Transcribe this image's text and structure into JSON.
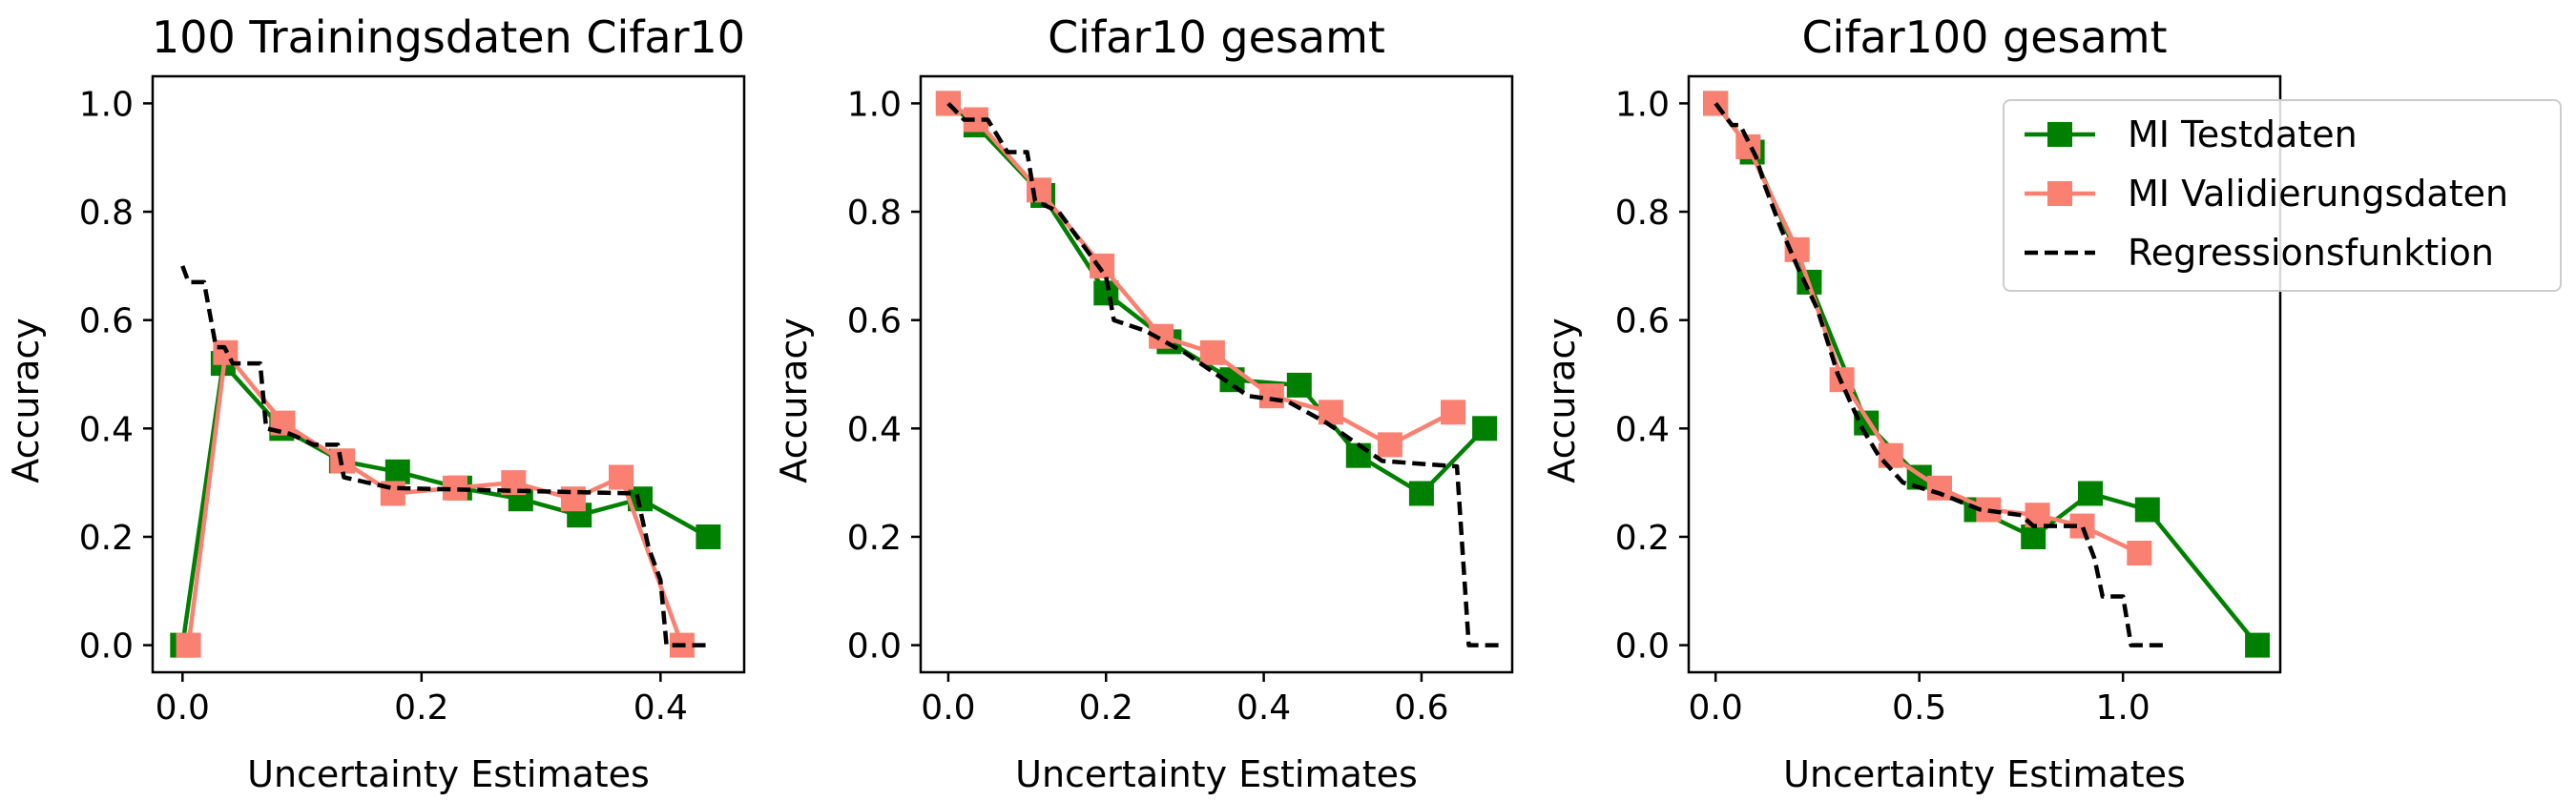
{
  "chart_data": [
    {
      "type": "line",
      "title": "100 Trainingsdaten Cifar10",
      "xlabel": "Uncertainty Estimates",
      "ylabel": "Accuracy",
      "xlim": [
        -0.025,
        0.47
      ],
      "ylim": [
        -0.05,
        1.05
      ],
      "xticks": [
        0.0,
        0.2,
        0.4
      ],
      "xtick_labels": [
        "0.0",
        "0.2",
        "0.4"
      ],
      "yticks": [
        0.0,
        0.2,
        0.4,
        0.6,
        0.8,
        1.0
      ],
      "ytick_labels": [
        "0.0",
        "0.2",
        "0.4",
        "0.6",
        "0.8",
        "1.0"
      ],
      "series": [
        {
          "name": "MI Testdaten",
          "color": "#008000",
          "marker": "square",
          "x": [
            0.0,
            0.034,
            0.083,
            0.133,
            0.18,
            0.232,
            0.283,
            0.332,
            0.383,
            0.44
          ],
          "y": [
            0.0,
            0.52,
            0.4,
            0.34,
            0.32,
            0.29,
            0.27,
            0.24,
            0.27,
            0.2
          ]
        },
        {
          "name": "MI Validierungsdaten",
          "color": "#fa8072",
          "marker": "square",
          "x": [
            0.005,
            0.036,
            0.084,
            0.134,
            0.176,
            0.228,
            0.277,
            0.327,
            0.367,
            0.418
          ],
          "y": [
            0.0,
            0.54,
            0.41,
            0.34,
            0.28,
            0.29,
            0.3,
            0.27,
            0.31,
            0.0
          ]
        },
        {
          "name": "Regressionsfunktion",
          "color": "#000000",
          "style": "dashed",
          "x": [
            0.0,
            0.005,
            0.018,
            0.028,
            0.035,
            0.042,
            0.065,
            0.07,
            0.09,
            0.11,
            0.13,
            0.135,
            0.175,
            0.38,
            0.39,
            0.4,
            0.405,
            0.44
          ],
          "y": [
            0.7,
            0.67,
            0.67,
            0.55,
            0.55,
            0.52,
            0.52,
            0.4,
            0.39,
            0.37,
            0.37,
            0.31,
            0.29,
            0.28,
            0.18,
            0.12,
            0.0,
            0.0
          ]
        }
      ]
    },
    {
      "type": "line",
      "title": "Cifar10 gesamt",
      "xlabel": "Uncertainty Estimates",
      "ylabel": "Accuracy",
      "xlim": [
        -0.035,
        0.715
      ],
      "ylim": [
        -0.05,
        1.05
      ],
      "xticks": [
        0.0,
        0.2,
        0.4,
        0.6
      ],
      "xtick_labels": [
        "0.0",
        "0.2",
        "0.4",
        "0.6"
      ],
      "yticks": [
        0.0,
        0.2,
        0.4,
        0.6,
        0.8,
        1.0
      ],
      "ytick_labels": [
        "0.0",
        "0.2",
        "0.4",
        "0.6",
        "0.8",
        "1.0"
      ],
      "series": [
        {
          "name": "MI Testdaten",
          "color": "#008000",
          "marker": "square",
          "x": [
            0.0,
            0.035,
            0.12,
            0.2,
            0.28,
            0.36,
            0.445,
            0.52,
            0.6,
            0.68
          ],
          "y": [
            1.0,
            0.96,
            0.83,
            0.65,
            0.56,
            0.49,
            0.48,
            0.35,
            0.28,
            0.4
          ]
        },
        {
          "name": "MI Validierungsdaten",
          "color": "#fa8072",
          "marker": "square",
          "x": [
            0.0,
            0.035,
            0.115,
            0.195,
            0.27,
            0.335,
            0.41,
            0.485,
            0.56,
            0.64
          ],
          "y": [
            1.0,
            0.97,
            0.84,
            0.7,
            0.57,
            0.54,
            0.46,
            0.43,
            0.37,
            0.43
          ]
        },
        {
          "name": "Regressionsfunktion",
          "color": "#000000",
          "style": "dashed",
          "x": [
            0.0,
            0.02,
            0.05,
            0.075,
            0.1,
            0.11,
            0.14,
            0.17,
            0.2,
            0.21,
            0.25,
            0.3,
            0.34,
            0.38,
            0.43,
            0.48,
            0.55,
            0.645,
            0.66,
            0.7
          ],
          "y": [
            1.0,
            0.97,
            0.97,
            0.91,
            0.91,
            0.82,
            0.8,
            0.74,
            0.68,
            0.6,
            0.58,
            0.54,
            0.5,
            0.46,
            0.45,
            0.41,
            0.34,
            0.33,
            0.0,
            0.0
          ]
        }
      ]
    },
    {
      "type": "line",
      "title": "Cifar100 gesamt",
      "xlabel": "Uncertainty Estimates",
      "ylabel": "Accuracy",
      "xlim": [
        -0.066,
        1.386
      ],
      "ylim": [
        -0.05,
        1.05
      ],
      "xticks": [
        0.0,
        0.5,
        1.0
      ],
      "xtick_labels": [
        "0.0",
        "0.5",
        "1.0"
      ],
      "yticks": [
        0.0,
        0.2,
        0.4,
        0.6,
        0.8,
        1.0
      ],
      "ytick_labels": [
        "0.0",
        "0.2",
        "0.4",
        "0.6",
        "0.8",
        "1.0"
      ],
      "legend": {
        "location": "top-right",
        "entries": [
          "MI Testdaten",
          "MI Validierungsdaten",
          "Regressionsfunktion"
        ]
      },
      "series": [
        {
          "name": "MI Testdaten",
          "color": "#008000",
          "marker": "square",
          "x": [
            0.0,
            0.09,
            0.23,
            0.37,
            0.5,
            0.64,
            0.78,
            0.92,
            1.06,
            1.33
          ],
          "y": [
            1.0,
            0.91,
            0.67,
            0.41,
            0.31,
            0.25,
            0.2,
            0.28,
            0.25,
            0.0
          ]
        },
        {
          "name": "MI Validierungsdaten",
          "color": "#fa8072",
          "marker": "square",
          "x": [
            0.0,
            0.08,
            0.2,
            0.31,
            0.43,
            0.55,
            0.67,
            0.79,
            0.9,
            1.04
          ],
          "y": [
            1.0,
            0.92,
            0.73,
            0.49,
            0.35,
            0.29,
            0.25,
            0.24,
            0.22,
            0.17
          ]
        },
        {
          "name": "Regressionsfunktion",
          "color": "#000000",
          "style": "dashed",
          "x": [
            0.0,
            0.04,
            0.06,
            0.1,
            0.12,
            0.16,
            0.2,
            0.25,
            0.3,
            0.36,
            0.4,
            0.46,
            0.55,
            0.65,
            0.75,
            0.78,
            0.9,
            0.93,
            0.95,
            1.0,
            1.02,
            1.1
          ],
          "y": [
            1.0,
            0.96,
            0.96,
            0.9,
            0.85,
            0.77,
            0.7,
            0.62,
            0.5,
            0.4,
            0.35,
            0.3,
            0.28,
            0.25,
            0.24,
            0.22,
            0.22,
            0.16,
            0.09,
            0.09,
            0.0,
            0.0
          ]
        }
      ]
    }
  ]
}
